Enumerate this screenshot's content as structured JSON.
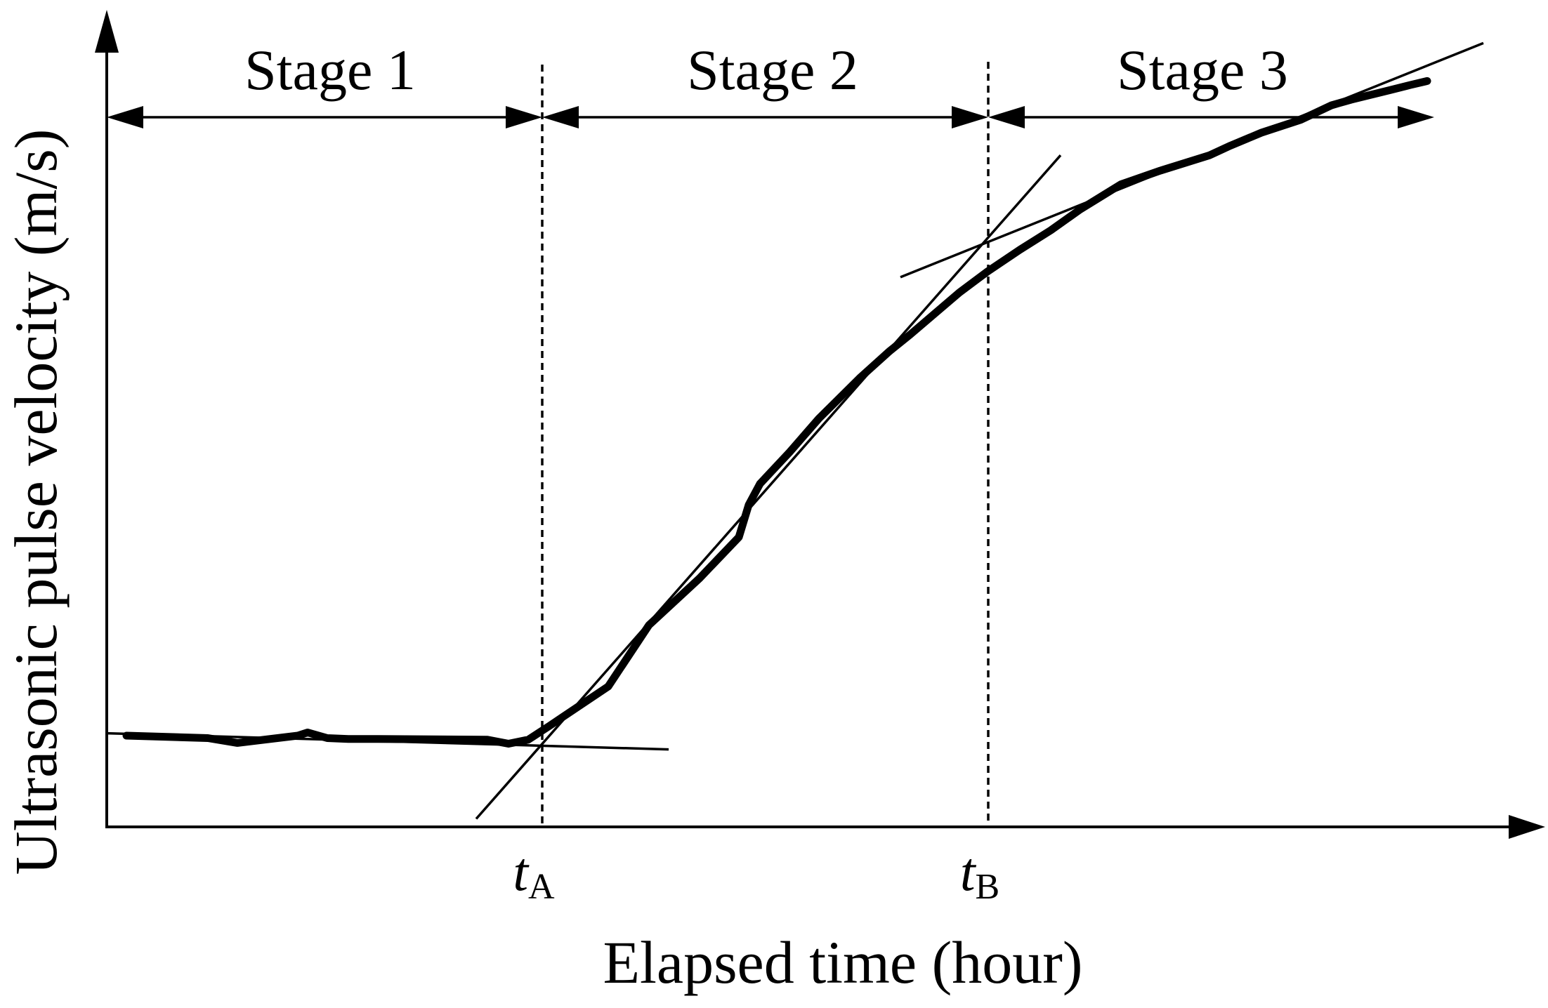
{
  "chart_data": {
    "type": "line",
    "title": "",
    "xlabel": "Elapsed time (hour)",
    "ylabel": "Ultrasonic pulse velocity (m/s)",
    "xlim": [
      0,
      100
    ],
    "ylim": [
      0,
      100
    ],
    "x_ticks": [
      {
        "main": "t",
        "sub": "A",
        "x": 30.9
      },
      {
        "main": "t",
        "sub": "B",
        "x": 62.7
      }
    ],
    "stages": [
      {
        "label": "Stage 1",
        "x_start": 0,
        "x_end": 30.9
      },
      {
        "label": "Stage 2",
        "x_start": 30.9,
        "x_end": 62.7
      },
      {
        "label": "Stage 3",
        "x_start": 62.7,
        "x_end": 94.0
      }
    ],
    "series": [
      {
        "x": [
          1.4,
          7.2,
          9.3,
          13.6,
          14.3,
          15.7,
          17.2,
          19.3,
          27.1,
          28.6,
          30.0,
          31.5,
          35.7,
          38.6,
          42.2,
          45.0,
          45.7,
          46.5,
          47.2,
          48.6,
          50.7,
          53.6,
          55.7,
          57.2,
          60.7,
          62.7,
          65.0,
          67.2,
          69.3,
          72.2,
          75.0,
          78.5,
          80.0,
          82.2,
          85.0,
          87.2,
          88.6,
          90.0,
          91.4,
          92.8,
          94.0
        ],
        "y": [
          11.3,
          11.0,
          10.4,
          11.3,
          11.7,
          11.0,
          10.9,
          10.9,
          10.8,
          10.3,
          10.8,
          12.5,
          17.4,
          25.0,
          30.8,
          35.9,
          39.9,
          42.5,
          43.8,
          46.4,
          50.6,
          55.6,
          58.9,
          61.0,
          66.2,
          68.8,
          71.5,
          73.9,
          76.5,
          79.6,
          81.3,
          83.2,
          84.4,
          86.0,
          87.6,
          89.4,
          90.1,
          90.7,
          91.3,
          91.9,
          92.4
        ]
      }
    ],
    "fit_lines": [
      {
        "x": [
          0,
          40.0
        ],
        "y": [
          11.6,
          9.6
        ]
      },
      {
        "x": [
          26.3,
          67.9
        ],
        "y": [
          1.0,
          83.2
        ]
      },
      {
        "x": [
          56.5,
          98.0
        ],
        "y": [
          68.1,
          97.1
        ]
      }
    ],
    "grid": false,
    "legend": "none"
  }
}
